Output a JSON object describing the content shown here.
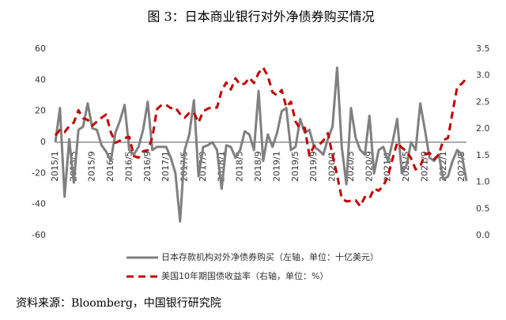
{
  "chart_data": {
    "type": "line",
    "title": "图 3：日本商业银行对外净债券购买情况",
    "source": "资料来源：Bloomberg，中国银行研究院",
    "categories": [
      "2015/1",
      null,
      null,
      null,
      "2015/5",
      null,
      null,
      null,
      "2015/9",
      null,
      null,
      null,
      "2016/1",
      null,
      null,
      null,
      "2016/5",
      null,
      null,
      null,
      "2016/9",
      null,
      null,
      null,
      "2017/1",
      null,
      null,
      null,
      "2017/5",
      null,
      null,
      null,
      "2017/9",
      null,
      null,
      null,
      "2018/1",
      null,
      null,
      null,
      "2018/5",
      null,
      null,
      null,
      "2018/9",
      null,
      null,
      null,
      "2019/1",
      null,
      null,
      null,
      "2019/5",
      null,
      null,
      null,
      "2019/9",
      null,
      null,
      null,
      "2020/1",
      null,
      null,
      null,
      "2020/5",
      null,
      null,
      null,
      "2020/9",
      null,
      null,
      null,
      "2021/1",
      null,
      null,
      null,
      "2021/5",
      null,
      null,
      null,
      "2021/9",
      null,
      null,
      null,
      "2022/1",
      null,
      null,
      null,
      "2022/5",
      null
    ],
    "series": [
      {
        "name": "日本存款机构对外净债券购买（左轴，单位：十亿美元）",
        "color": "#808080",
        "dash": false,
        "values": [
          0,
          22,
          -35,
          2,
          -26,
          8,
          10,
          25,
          9,
          8,
          -2,
          -6,
          -12,
          6,
          14,
          24,
          -5,
          -8,
          -3,
          8,
          26,
          -5,
          -3,
          -3,
          -3,
          -10,
          -20,
          -51,
          -5,
          5,
          27,
          -22,
          -3,
          -2,
          0,
          -5,
          -30,
          -2,
          -3,
          -10,
          -5,
          7,
          5,
          -5,
          33,
          -12,
          5,
          -3,
          6,
          20,
          22,
          -5,
          -3,
          15,
          6,
          8,
          -3,
          -5,
          -8,
          2,
          10,
          48,
          -3,
          -27,
          22,
          3,
          -5,
          -8,
          17,
          -20,
          -5,
          -3,
          -12,
          0,
          15,
          -20,
          -15,
          0,
          -5,
          25,
          8,
          -10,
          -12,
          -8,
          -24,
          -22,
          -12,
          -5,
          -8,
          -25
        ]
      },
      {
        "name": "美国10年期国债收益率（右轴，单位：%）",
        "color": "#c00000",
        "dash": true,
        "axis": "y2",
        "values": [
          1.88,
          1.98,
          1.94,
          2.05,
          2.12,
          2.35,
          2.2,
          2.17,
          2.06,
          2.14,
          2.21,
          2.27,
          1.94,
          1.74,
          1.78,
          1.83,
          1.85,
          1.49,
          1.46,
          1.58,
          1.6,
          1.84,
          2.37,
          2.45,
          2.45,
          2.39,
          2.4,
          2.28,
          2.21,
          2.3,
          2.3,
          2.12,
          2.33,
          2.38,
          2.41,
          2.4,
          2.72,
          2.87,
          2.74,
          2.95,
          2.83,
          2.85,
          2.96,
          2.86,
          3.05,
          3.15,
          2.99,
          2.69,
          2.63,
          2.73,
          2.41,
          2.51,
          2.14,
          2.0,
          2.02,
          1.5,
          1.68,
          1.69,
          1.78,
          1.92,
          1.51,
          1.13,
          0.7,
          0.64,
          0.65,
          0.66,
          0.55,
          0.72,
          0.69,
          0.88,
          0.84,
          0.93,
          1.11,
          1.44,
          1.74,
          1.65,
          1.58,
          1.45,
          1.24,
          1.3,
          1.52,
          1.55,
          1.43,
          1.52,
          1.79,
          1.83,
          2.32,
          2.79,
          2.85,
          2.95
        ]
      }
    ],
    "ylim": [
      -60,
      60
    ],
    "yticks": [
      -60,
      -40,
      -20,
      0,
      20,
      40,
      60
    ],
    "y2lim": [
      0,
      3.5
    ],
    "y2ticks": [
      {
        "value": 0,
        "label": "0.0"
      },
      0.5,
      {
        "value": 1,
        "label": "1.0"
      },
      1.5,
      {
        "value": 2,
        "label": "2.0"
      },
      2.5,
      {
        "value": 3,
        "label": "3.0"
      },
      3.5
    ]
  }
}
